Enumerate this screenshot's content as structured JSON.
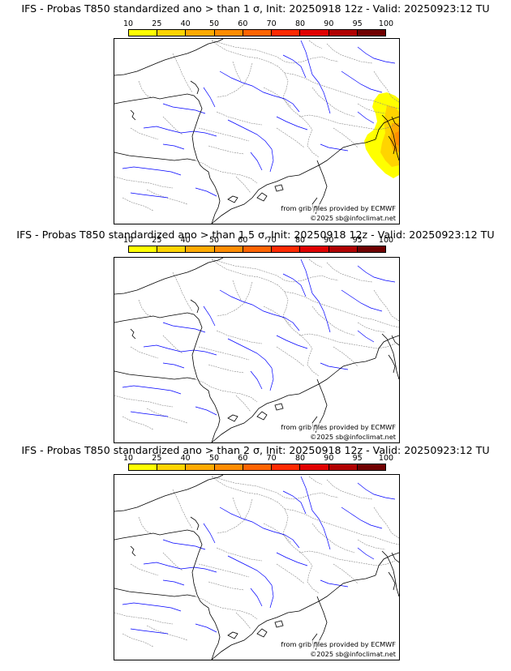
{
  "panels": [
    {
      "title": "IFS - Probas T850  standardized ano > than 1 σ, Init: 20250918 12z - Valid: 20250923:12 TU",
      "threshold_sigma": 1,
      "prob_area": "alps-east"
    },
    {
      "title": "IFS - Probas T850  standardized ano > than 1.5 σ, Init: 20250918 12z - Valid: 20250923:12 TU",
      "threshold_sigma": 1.5,
      "prob_area": "none"
    },
    {
      "title": "IFS - Probas T850  standardized ano > than 2 σ, Init: 20250918 12z - Valid: 20250923:12 TU",
      "threshold_sigma": 2,
      "prob_area": "none"
    }
  ],
  "colorbar": {
    "labels": [
      "10",
      "25",
      "40",
      "50",
      "60",
      "70",
      "80",
      "90",
      "95",
      "100"
    ],
    "colors": [
      "#ffff00",
      "#ffd400",
      "#ffaa00",
      "#ff8c00",
      "#ff6400",
      "#ff2a00",
      "#e00000",
      "#b00000",
      "#700000"
    ]
  },
  "credits": {
    "source": "from grib files provided by ECMWF",
    "copyright": "©2025 sb@infoclimat.net"
  },
  "colors": {
    "coast": "#000000",
    "borders": "#888888",
    "rivers": "#0000ff",
    "background": "#ffffff"
  }
}
